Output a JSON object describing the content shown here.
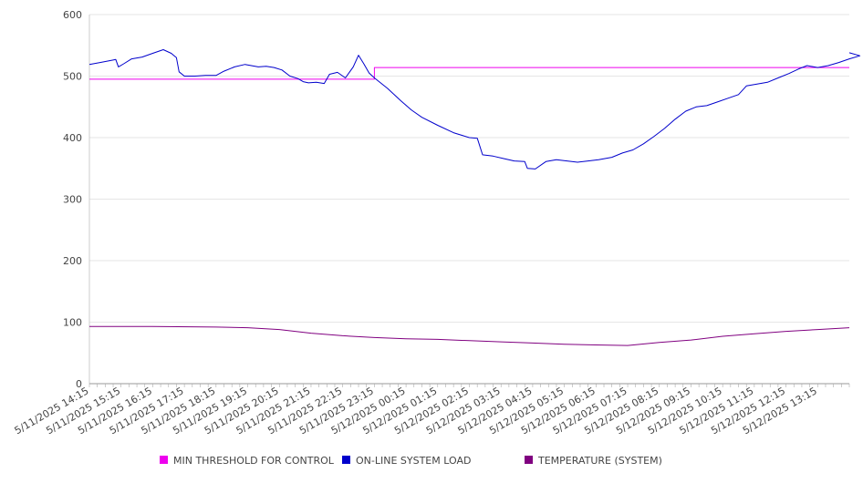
{
  "chart_data": {
    "type": "line",
    "title": "",
    "xlabel": "",
    "ylabel": "",
    "ylim": [
      0,
      600
    ],
    "yticks": [
      0,
      100,
      200,
      300,
      400,
      500,
      600
    ],
    "grid": true,
    "legend_position": "bottom",
    "x_tick_labels": [
      "5/11/2025 14:15",
      "5/11/2025 15:15",
      "5/11/2025 16:15",
      "5/11/2025 17:15",
      "5/11/2025 18:15",
      "5/11/2025 19:15",
      "5/11/2025 20:15",
      "5/11/2025 21:15",
      "5/11/2025 22:15",
      "5/11/2025 23:15",
      "5/12/2025 00:15",
      "5/12/2025 01:15",
      "5/12/2025 02:15",
      "5/12/2025 03:15",
      "5/12/2025 04:15",
      "5/12/2025 05:15",
      "5/12/2025 06:15",
      "5/12/2025 07:15",
      "5/12/2025 08:15",
      "5/12/2025 09:15",
      "5/12/2025 10:15",
      "5/12/2025 11:15",
      "5/12/2025 12:15",
      "5/12/2025 13:15"
    ],
    "x_start": "5/11/2025 14:15",
    "x_end": "5/12/2025 14:15",
    "series": [
      {
        "name": "MIN THRESHOLD FOR CONTROL",
        "color": "#ee00ee",
        "points": [
          [
            "5/11/2025 14:15",
            495
          ],
          [
            "5/11/2025 23:15",
            495
          ],
          [
            "5/11/2025 23:15",
            514
          ],
          [
            "5/12/2025 14:15",
            514
          ]
        ]
      },
      {
        "name": "ON-LINE SYSTEM LOAD",
        "color": "#0000cc",
        "points": [
          [
            "5/11/2025 14:15",
            519
          ],
          [
            "5/11/2025 14:35",
            522
          ],
          [
            "5/11/2025 15:00",
            526
          ],
          [
            "5/11/2025 15:05",
            527
          ],
          [
            "5/11/2025 15:10",
            515
          ],
          [
            "5/11/2025 15:20",
            520
          ],
          [
            "5/11/2025 15:35",
            528
          ],
          [
            "5/11/2025 15:55",
            531
          ],
          [
            "5/11/2025 16:15",
            537
          ],
          [
            "5/11/2025 16:35",
            543
          ],
          [
            "5/11/2025 16:50",
            537
          ],
          [
            "5/11/2025 17:00",
            530
          ],
          [
            "5/11/2025 17:05",
            507
          ],
          [
            "5/11/2025 17:15",
            500
          ],
          [
            "5/11/2025 17:35",
            500
          ],
          [
            "5/11/2025 17:55",
            501
          ],
          [
            "5/11/2025 18:15",
            501
          ],
          [
            "5/11/2025 18:30",
            508
          ],
          [
            "5/11/2025 18:50",
            515
          ],
          [
            "5/11/2025 19:10",
            519
          ],
          [
            "5/11/2025 19:35",
            515
          ],
          [
            "5/11/2025 19:50",
            516
          ],
          [
            "5/11/2025 20:05",
            514
          ],
          [
            "5/11/2025 20:20",
            510
          ],
          [
            "5/11/2025 20:35",
            500
          ],
          [
            "5/11/2025 20:50",
            496
          ],
          [
            "5/11/2025 21:00",
            491
          ],
          [
            "5/11/2025 21:10",
            489
          ],
          [
            "5/11/2025 21:25",
            490
          ],
          [
            "5/11/2025 21:40",
            488
          ],
          [
            "5/11/2025 21:50",
            503
          ],
          [
            "5/11/2025 22:05",
            506
          ],
          [
            "5/11/2025 22:20",
            497
          ],
          [
            "5/11/2025 22:35",
            515
          ],
          [
            "5/11/2025 22:45",
            534
          ],
          [
            "5/11/2025 22:55",
            520
          ],
          [
            "5/11/2025 23:05",
            505
          ],
          [
            "5/11/2025 23:15",
            497
          ],
          [
            "5/11/2025 23:40",
            480
          ],
          [
            "5/12/2025 00:05",
            460
          ],
          [
            "5/12/2025 00:25",
            445
          ],
          [
            "5/12/2025 00:45",
            433
          ],
          [
            "5/12/2025 01:15",
            420
          ],
          [
            "5/12/2025 01:45",
            408
          ],
          [
            "5/12/2025 02:15",
            400
          ],
          [
            "5/12/2025 02:30",
            399
          ],
          [
            "5/12/2025 02:40",
            372
          ],
          [
            "5/12/2025 03:00",
            370
          ],
          [
            "5/12/2025 03:20",
            366
          ],
          [
            "5/12/2025 03:40",
            362
          ],
          [
            "5/12/2025 04:00",
            361
          ],
          [
            "5/12/2025 04:05",
            350
          ],
          [
            "5/12/2025 04:20",
            349
          ],
          [
            "5/12/2025 04:40",
            361
          ],
          [
            "5/12/2025 05:00",
            364
          ],
          [
            "5/12/2025 05:20",
            362
          ],
          [
            "5/12/2025 05:40",
            360
          ],
          [
            "5/12/2025 06:00",
            362
          ],
          [
            "5/12/2025 06:20",
            364
          ],
          [
            "5/12/2025 06:45",
            368
          ],
          [
            "5/12/2025 07:05",
            375
          ],
          [
            "5/12/2025 07:25",
            380
          ],
          [
            "5/12/2025 07:45",
            390
          ],
          [
            "5/12/2025 08:05",
            402
          ],
          [
            "5/12/2025 08:25",
            415
          ],
          [
            "5/12/2025 08:45",
            430
          ],
          [
            "5/12/2025 09:05",
            443
          ],
          [
            "5/12/2025 09:25",
            450
          ],
          [
            "5/12/2025 09:45",
            452
          ],
          [
            "5/12/2025 10:05",
            458
          ],
          [
            "5/12/2025 10:25",
            464
          ],
          [
            "5/12/2025 10:45",
            470
          ],
          [
            "5/12/2025 11:00",
            484
          ],
          [
            "5/12/2025 11:20",
            487
          ],
          [
            "5/12/2025 11:40",
            490
          ],
          [
            "5/12/2025 12:00",
            497
          ],
          [
            "5/12/2025 12:20",
            504
          ],
          [
            "5/12/2025 12:40",
            512
          ],
          [
            "5/12/2025 12:55",
            517
          ],
          [
            "5/12/2025 13:15",
            514
          ],
          [
            "5/12/2025 13:35",
            517
          ],
          [
            "5/12/2025 13:55",
            522
          ],
          [
            "5/12/2025 14:15",
            528
          ],
          [
            "5/12/2025 14:35",
            533
          ],
          [
            "5/12/2025 14:15",
            538
          ]
        ]
      },
      {
        "name": "TEMPERATURE (SYSTEM)",
        "color": "#800080",
        "points": [
          [
            "5/11/2025 14:15",
            93
          ],
          [
            "5/11/2025 16:15",
            93
          ],
          [
            "5/11/2025 18:15",
            92
          ],
          [
            "5/11/2025 19:15",
            91
          ],
          [
            "5/11/2025 20:15",
            88
          ],
          [
            "5/11/2025 21:15",
            82
          ],
          [
            "5/11/2025 22:15",
            78
          ],
          [
            "5/11/2025 23:15",
            75
          ],
          [
            "5/12/2025 00:15",
            73
          ],
          [
            "5/12/2025 01:15",
            72
          ],
          [
            "5/12/2025 02:15",
            70
          ],
          [
            "5/12/2025 03:15",
            68
          ],
          [
            "5/12/2025 04:15",
            66
          ],
          [
            "5/12/2025 05:15",
            64
          ],
          [
            "5/12/2025 06:15",
            63
          ],
          [
            "5/12/2025 07:15",
            62
          ],
          [
            "5/12/2025 08:15",
            67
          ],
          [
            "5/12/2025 09:15",
            71
          ],
          [
            "5/12/2025 10:15",
            77
          ],
          [
            "5/12/2025 11:15",
            81
          ],
          [
            "5/12/2025 12:15",
            85
          ],
          [
            "5/12/2025 13:15",
            88
          ],
          [
            "5/12/2025 14:15",
            91
          ]
        ]
      }
    ]
  }
}
